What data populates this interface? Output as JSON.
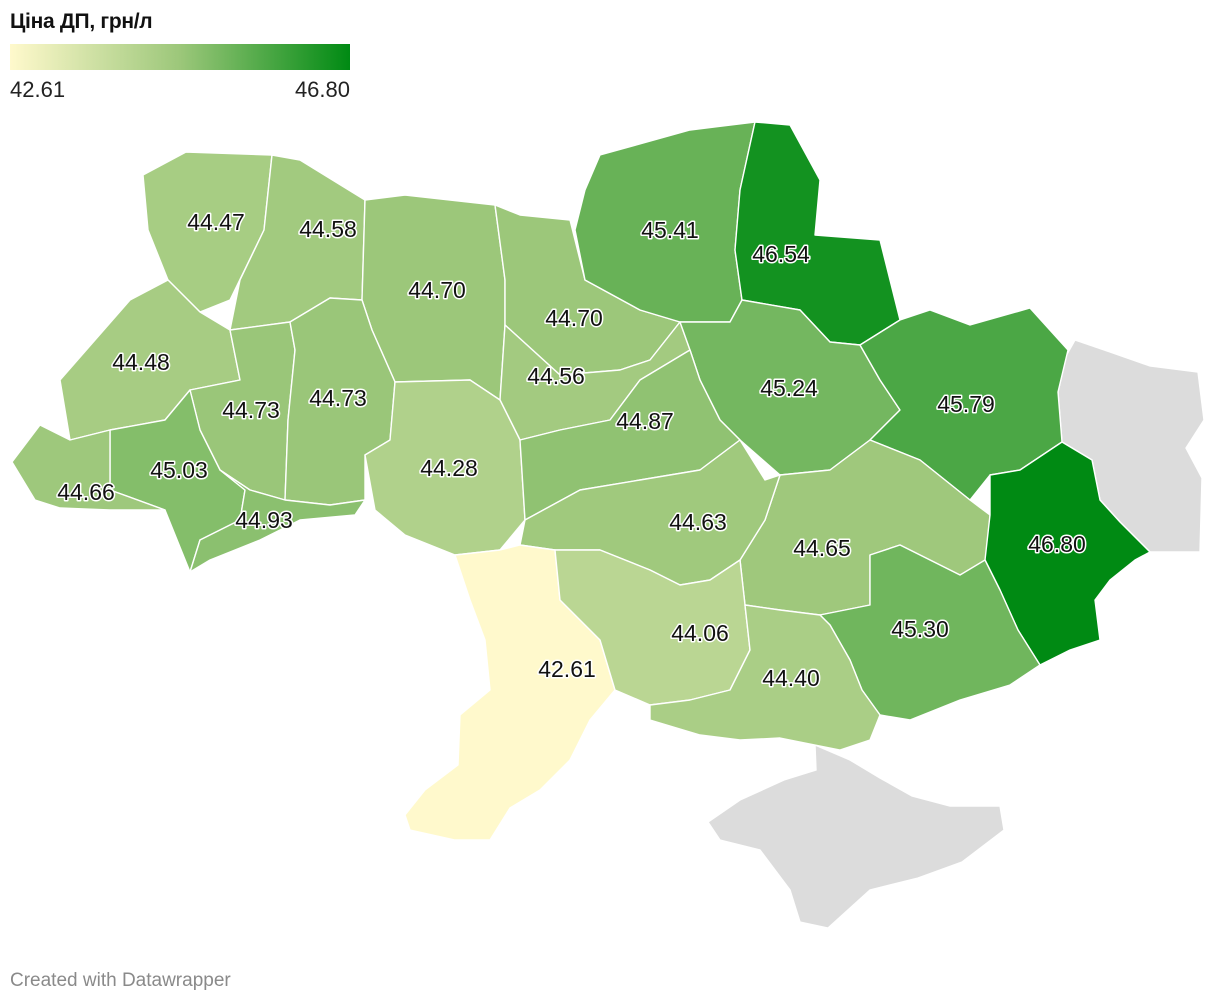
{
  "legend": {
    "title": "Ціна ДП, грн/л",
    "min_label": "42.61",
    "max_label": "46.80",
    "min_value": 42.61,
    "max_value": 46.8,
    "color_min": "#fff9cc",
    "color_mid": "#9cc77a",
    "color_max": "#008a13"
  },
  "occupied_color": "#dcdcdc",
  "credit": "Created with Datawrapper",
  "regions": [
    {
      "id": "volyn",
      "value": 44.47,
      "label": "44.47"
    },
    {
      "id": "rivne",
      "value": 44.58,
      "label": "44.58"
    },
    {
      "id": "zhytomyr",
      "value": 44.7,
      "label": "44.70"
    },
    {
      "id": "kyiv",
      "value": 44.7,
      "label": "44.70"
    },
    {
      "id": "chernihiv",
      "value": 45.41,
      "label": "45.41"
    },
    {
      "id": "sumy",
      "value": 46.54,
      "label": "46.54"
    },
    {
      "id": "lviv",
      "value": 44.48,
      "label": "44.48"
    },
    {
      "id": "ternopil",
      "value": 44.73,
      "label": "44.73"
    },
    {
      "id": "khmelnytskyi",
      "value": 44.73,
      "label": "44.73"
    },
    {
      "id": "cherkasy",
      "value": 44.56,
      "label": "44.56"
    },
    {
      "id": "poltava",
      "value": 45.24,
      "label": "45.24"
    },
    {
      "id": "kharkiv",
      "value": 45.79,
      "label": "45.79"
    },
    {
      "id": "vinnytsia",
      "value": 44.28,
      "label": "44.28"
    },
    {
      "id": "kirovohrad",
      "value": 44.87,
      "label": "44.87"
    },
    {
      "id": "ivano-frankivsk",
      "value": 45.03,
      "label": "45.03"
    },
    {
      "id": "zakarpattia",
      "value": 44.66,
      "label": "44.66"
    },
    {
      "id": "chernivtsi",
      "value": 44.93,
      "label": "44.93"
    },
    {
      "id": "dnipro",
      "value": 44.65,
      "label": "44.65"
    },
    {
      "id": "donetsk",
      "value": 46.8,
      "label": "46.80"
    },
    {
      "id": "mykolaiv",
      "value": 44.63,
      "label": "44.63"
    },
    {
      "id": "odesa",
      "value": 42.61,
      "label": "42.61"
    },
    {
      "id": "kherson-north",
      "value": 44.06,
      "label": "44.06"
    },
    {
      "id": "zaporizhzhia",
      "value": 45.3,
      "label": "45.30"
    },
    {
      "id": "kherson",
      "value": 44.4,
      "label": "44.40"
    }
  ]
}
